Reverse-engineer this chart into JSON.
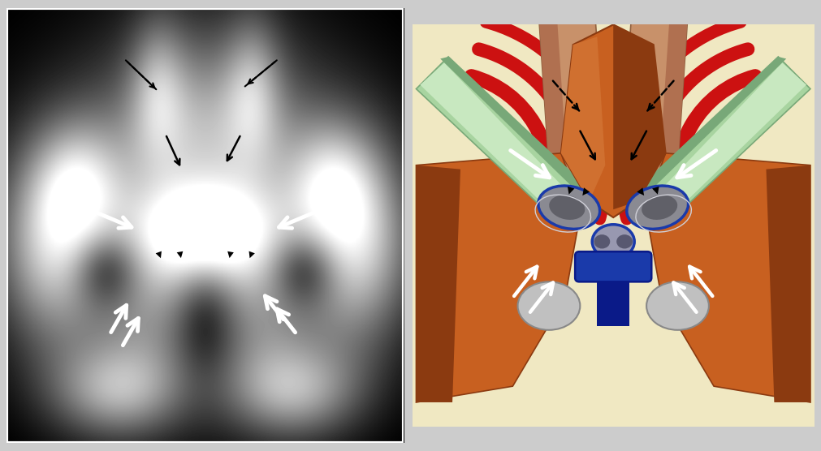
{
  "fig_width": 10.11,
  "fig_height": 5.56,
  "colors": {
    "bg_fig": "#cccccc",
    "bg_left": "#888888",
    "bg_right": "#f0e8c2",
    "skin_tan": "#c8916a",
    "skin_dark": "#a07040",
    "muscle_orange": "#c86020",
    "muscle_shadow": "#8b3a10",
    "muscle_mid": "#b05020",
    "green": "#a8d4a0",
    "green_hi": "#c8e8c0",
    "green_sh": "#78a878",
    "red_arc": "#cc1111",
    "red_dark": "#990000",
    "blue": "#1a3aaa",
    "blue_dark": "#0a1a88",
    "gray_bone": "#9898a0",
    "gray_light": "#c0c0c0",
    "gray_dark": "#686870",
    "white_arr": "#ffffff",
    "black": "#000000"
  }
}
